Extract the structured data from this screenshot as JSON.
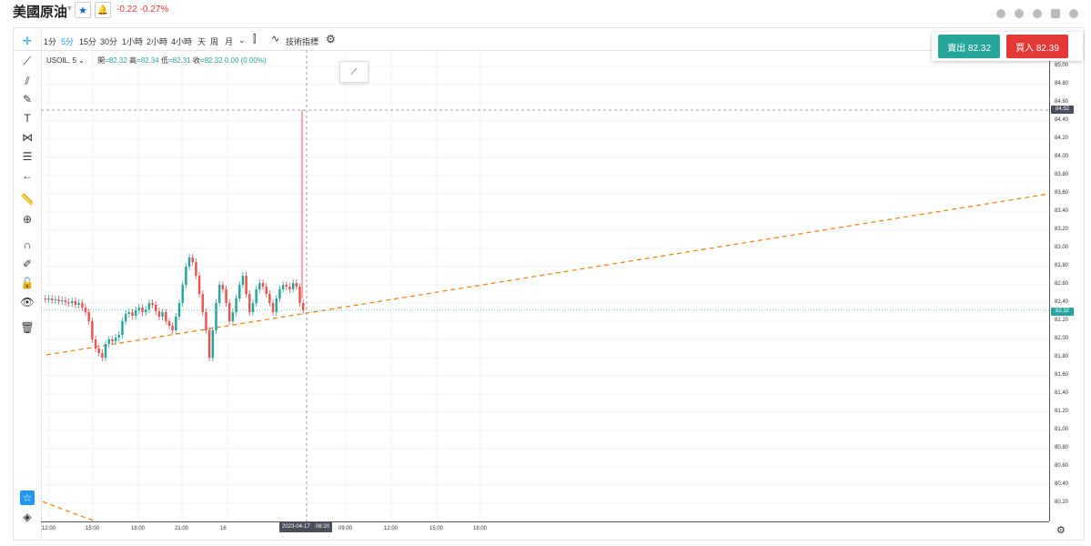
{
  "header": {
    "title": "美國原油",
    "change": "-0.22  -0.27%"
  },
  "toolbar": {
    "timeframes": [
      "1分",
      "5分",
      "15分",
      "30分",
      "1小時",
      "2小時",
      "4小時",
      "天",
      "周",
      "月"
    ],
    "active_timeframe": "5分",
    "indicators_label": "技術指標"
  },
  "legend": {
    "symbol": "USOIL, 5",
    "open_label": "開",
    "open": "=82.32",
    "high_label": "高",
    "high": "=82.34",
    "low_label": "低",
    "low": "=82.31",
    "close_label": "收",
    "close": "=82.32",
    "change": "0.00 (0.00%)"
  },
  "trade": {
    "sell_label": "賣出 82.32",
    "buy_label": "買入 82.39"
  },
  "price_axis": {
    "labels": [
      "85.00",
      "84.80",
      "84.60",
      "84.40",
      "84.20",
      "84.00",
      "83.80",
      "83.60",
      "83.40",
      "83.20",
      "83.00",
      "82.80",
      "82.60",
      "82.40",
      "82.20",
      "82.00",
      "81.80",
      "81.60",
      "81.40",
      "81.20",
      "81.00",
      "80.80",
      "80.60",
      "80.40",
      "80.20"
    ],
    "crosshair_price": "84.52",
    "last_price": "82.32"
  },
  "time_axis": {
    "labels": [
      "12:00",
      "15:00",
      "18:00",
      "21:00",
      "16",
      "09:00",
      "12:00",
      "15:00",
      "18:00"
    ],
    "crosshair_time": "2023-04-17",
    "crosshair_clock": "06:20"
  },
  "colors": {
    "up": "#26a69a",
    "down": "#ef5350",
    "trendline": "#f57c00",
    "sell": "#26a69a",
    "buy": "#e53935"
  }
}
